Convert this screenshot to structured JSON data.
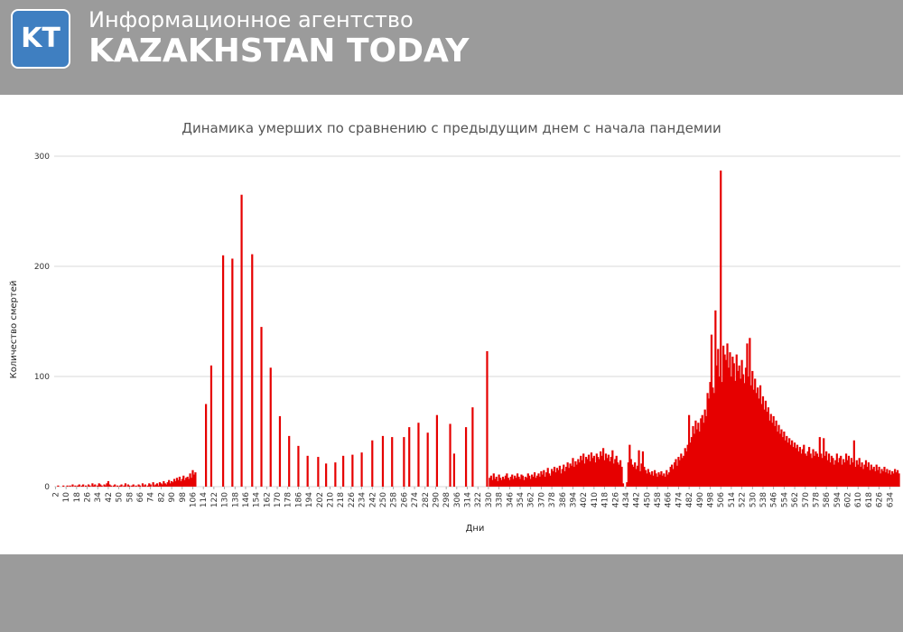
{
  "header": {
    "logo": "KT",
    "agency": "Информационное агентство",
    "brand": "KAZAKHSTAN TODAY"
  },
  "chart_data": {
    "type": "bar",
    "title": "Динамика умерших по сравнению с предыдущим днем с начала пандемии",
    "x_label": "Дни",
    "y_label": "Количество смертей",
    "color": "#e60000",
    "grid": true,
    "xlim": [
      1,
      642
    ],
    "ylim": [
      0,
      300
    ],
    "yticks": [
      0,
      100,
      200,
      300
    ],
    "xticks": [
      2,
      10,
      18,
      26,
      34,
      42,
      50,
      58,
      66,
      74,
      82,
      90,
      98,
      106,
      114,
      122,
      130,
      138,
      146,
      154,
      162,
      170,
      178,
      186,
      194,
      202,
      210,
      218,
      226,
      234,
      242,
      250,
      258,
      266,
      274,
      282,
      290,
      298,
      306,
      314,
      322,
      330,
      338,
      346,
      354,
      362,
      370,
      378,
      386,
      394,
      402,
      410,
      418,
      426,
      434,
      442,
      450,
      458,
      466,
      474,
      482,
      490,
      498,
      506,
      514,
      522,
      530,
      538,
      546,
      554,
      562,
      570,
      578,
      586,
      594,
      602,
      610,
      618,
      626,
      634
    ],
    "x": [
      2,
      3,
      4,
      5,
      6,
      7,
      8,
      9,
      10,
      11,
      12,
      13,
      14,
      15,
      16,
      17,
      18,
      19,
      20,
      21,
      22,
      23,
      24,
      25,
      26,
      27,
      28,
      29,
      30,
      31,
      32,
      33,
      34,
      35,
      36,
      37,
      38,
      39,
      40,
      41,
      42,
      43,
      44,
      45,
      46,
      47,
      48,
      49,
      50,
      51,
      52,
      53,
      54,
      55,
      56,
      57,
      58,
      59,
      60,
      61,
      62,
      63,
      64,
      65,
      66,
      67,
      68,
      69,
      70,
      71,
      72,
      73,
      74,
      75,
      76,
      77,
      78,
      79,
      80,
      81,
      82,
      83,
      84,
      85,
      86,
      87,
      88,
      89,
      90,
      91,
      92,
      93,
      94,
      95,
      96,
      97,
      98,
      99,
      100,
      101,
      102,
      103,
      104,
      105,
      106,
      107,
      108,
      116,
      120,
      129,
      136,
      143,
      151,
      158,
      165,
      172,
      179,
      186,
      193,
      201,
      207,
      214,
      220,
      227,
      234,
      242,
      250,
      257,
      266,
      270,
      277,
      284,
      291,
      301,
      304,
      313,
      318,
      329,
      331,
      332,
      333,
      334,
      335,
      336,
      337,
      338,
      339,
      340,
      341,
      342,
      343,
      344,
      345,
      346,
      347,
      348,
      349,
      350,
      351,
      352,
      353,
      354,
      355,
      356,
      357,
      358,
      359,
      360,
      361,
      362,
      363,
      364,
      365,
      366,
      367,
      368,
      369,
      370,
      371,
      372,
      373,
      374,
      375,
      376,
      377,
      378,
      379,
      380,
      381,
      382,
      383,
      384,
      385,
      386,
      387,
      388,
      389,
      390,
      391,
      392,
      393,
      394,
      395,
      396,
      397,
      398,
      399,
      400,
      401,
      402,
      403,
      404,
      405,
      406,
      407,
      408,
      409,
      410,
      411,
      412,
      413,
      414,
      415,
      416,
      417,
      418,
      419,
      420,
      421,
      422,
      423,
      424,
      425,
      426,
      427,
      428,
      429,
      430,
      431,
      432,
      433,
      434,
      435,
      436,
      437,
      438,
      439,
      440,
      441,
      442,
      443,
      444,
      445,
      446,
      447,
      448,
      449,
      450,
      451,
      452,
      453,
      454,
      455,
      456,
      457,
      458,
      459,
      460,
      461,
      462,
      463,
      464,
      465,
      466,
      467,
      468,
      469,
      470,
      471,
      472,
      473,
      474,
      475,
      476,
      477,
      478,
      479,
      480,
      481,
      482,
      483,
      484,
      485,
      486,
      487,
      488,
      489,
      490,
      491,
      492,
      493,
      494,
      495,
      496,
      497,
      498,
      499,
      500,
      501,
      502,
      503,
      504,
      505,
      506,
      507,
      508,
      509,
      510,
      511,
      512,
      513,
      514,
      515,
      516,
      517,
      518,
      519,
      520,
      521,
      522,
      523,
      524,
      525,
      526,
      527,
      528,
      529,
      530,
      531,
      532,
      533,
      534,
      535,
      536,
      537,
      538,
      539,
      540,
      541,
      542,
      543,
      544,
      545,
      546,
      547,
      548,
      549,
      550,
      551,
      552,
      553,
      554,
      555,
      556,
      557,
      558,
      559,
      560,
      561,
      562,
      563,
      564,
      565,
      566,
      567,
      568,
      569,
      570,
      571,
      572,
      573,
      574,
      575,
      576,
      577,
      578,
      579,
      580,
      581,
      582,
      583,
      584,
      585,
      586,
      587,
      588,
      589,
      590,
      591,
      592,
      593,
      594,
      595,
      596,
      597,
      598,
      599,
      600,
      601,
      602,
      603,
      604,
      605,
      606,
      607,
      608,
      609,
      610,
      611,
      612,
      613,
      614,
      615,
      616,
      617,
      618,
      619,
      620,
      621,
      622,
      623,
      624,
      625,
      626,
      627,
      628,
      629,
      630,
      631,
      632,
      633,
      634,
      635,
      636,
      637,
      638,
      639,
      640,
      641
    ],
    "values": [
      0,
      0,
      1,
      0,
      0,
      0,
      1,
      0,
      0,
      1,
      0,
      1,
      0,
      2,
      0,
      1,
      0,
      1,
      2,
      0,
      1,
      2,
      0,
      1,
      0,
      2,
      1,
      0,
      3,
      1,
      2,
      0,
      1,
      3,
      2,
      1,
      0,
      2,
      1,
      3,
      5,
      2,
      1,
      0,
      1,
      2,
      0,
      1,
      0,
      1,
      2,
      0,
      1,
      3,
      0,
      2,
      1,
      0,
      1,
      2,
      0,
      1,
      0,
      2,
      1,
      0,
      3,
      1,
      2,
      0,
      1,
      3,
      2,
      0,
      4,
      1,
      2,
      3,
      1,
      4,
      3,
      2,
      5,
      3,
      2,
      4,
      6,
      3,
      5,
      4,
      7,
      5,
      8,
      6,
      9,
      5,
      7,
      10,
      6,
      8,
      9,
      7,
      12,
      8,
      15,
      11,
      13,
      75,
      110,
      210,
      207,
      265,
      211,
      145,
      108,
      64,
      46,
      37,
      28,
      27,
      21,
      22,
      28,
      29,
      31,
      42,
      46,
      45,
      45,
      54,
      58,
      49,
      65,
      57,
      30,
      54,
      72,
      123,
      8,
      10,
      6,
      12,
      7,
      9,
      5,
      11,
      8,
      6,
      9,
      7,
      10,
      12,
      8,
      6,
      9,
      11,
      7,
      10,
      8,
      12,
      9,
      7,
      11,
      10,
      6,
      9,
      8,
      12,
      10,
      7,
      11,
      9,
      13,
      8,
      10,
      12,
      9,
      14,
      11,
      15,
      9,
      13,
      17,
      12,
      10,
      16,
      14,
      18,
      13,
      17,
      15,
      19,
      12,
      16,
      20,
      14,
      18,
      22,
      17,
      21,
      19,
      26,
      18,
      23,
      20,
      25,
      22,
      28,
      24,
      30,
      21,
      27,
      25,
      29,
      23,
      31,
      26,
      28,
      22,
      30,
      27,
      25,
      32,
      28,
      35,
      24,
      30,
      26,
      29,
      23,
      27,
      33,
      21,
      25,
      28,
      22,
      20,
      24,
      18,
      3,
      0,
      0,
      4,
      22,
      38,
      25,
      20,
      18,
      22,
      16,
      19,
      33,
      14,
      21,
      32,
      18,
      15,
      12,
      16,
      13,
      11,
      14,
      10,
      15,
      12,
      9,
      13,
      11,
      14,
      10,
      12,
      9,
      15,
      11,
      13,
      18,
      20,
      16,
      22,
      25,
      19,
      27,
      24,
      30,
      26,
      28,
      35,
      32,
      38,
      65,
      40,
      45,
      55,
      48,
      60,
      52,
      58,
      50,
      62,
      65,
      58,
      70,
      64,
      85,
      80,
      95,
      138,
      90,
      85,
      160,
      110,
      125,
      100,
      287,
      95,
      128,
      120,
      115,
      130,
      108,
      122,
      100,
      118,
      112,
      96,
      120,
      105,
      110,
      98,
      115,
      102,
      94,
      108,
      130,
      100,
      135,
      92,
      105,
      88,
      98,
      85,
      90,
      80,
      92,
      75,
      82,
      70,
      78,
      68,
      72,
      60,
      66,
      58,
      64,
      55,
      60,
      50,
      56,
      48,
      52,
      45,
      50,
      42,
      46,
      40,
      44,
      38,
      42,
      36,
      40,
      35,
      38,
      32,
      36,
      30,
      34,
      38,
      30,
      28,
      32,
      36,
      30,
      26,
      34,
      28,
      32,
      30,
      27,
      45,
      30,
      26,
      44,
      28,
      32,
      24,
      30,
      22,
      28,
      26,
      20,
      24,
      30,
      22,
      26,
      28,
      20,
      25,
      22,
      30,
      24,
      28,
      20,
      26,
      22,
      42,
      18,
      24,
      20,
      26,
      18,
      22,
      16,
      20,
      24,
      18,
      22,
      15,
      20,
      16,
      18,
      14,
      20,
      15,
      18,
      12,
      16,
      14,
      18,
      13,
      16,
      12,
      15,
      11,
      14,
      12,
      16,
      13,
      15,
      12
    ]
  }
}
